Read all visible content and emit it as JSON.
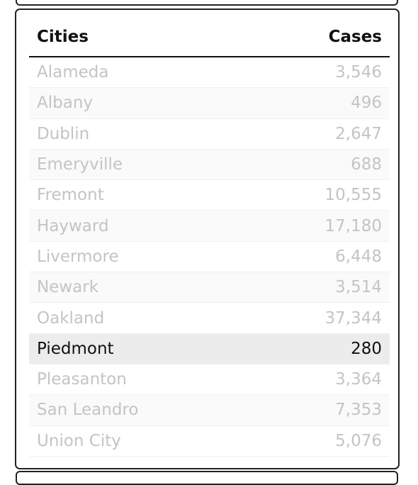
{
  "table": {
    "headers": {
      "city": "Cities",
      "cases": "Cases"
    },
    "rows": [
      {
        "city": "Alameda",
        "cases": "3,546"
      },
      {
        "city": "Albany",
        "cases": "496"
      },
      {
        "city": "Dublin",
        "cases": "2,647"
      },
      {
        "city": "Emeryville",
        "cases": "688"
      },
      {
        "city": "Fremont",
        "cases": "10,555"
      },
      {
        "city": "Hayward",
        "cases": "17,180"
      },
      {
        "city": "Livermore",
        "cases": "6,448"
      },
      {
        "city": "Newark",
        "cases": "3,514"
      },
      {
        "city": "Oakland",
        "cases": "37,344"
      },
      {
        "city": "Piedmont",
        "cases": "280"
      },
      {
        "city": "Pleasanton",
        "cases": "3,364"
      },
      {
        "city": "San Leandro",
        "cases": "7,353"
      },
      {
        "city": "Union City",
        "cases": "5,076"
      }
    ],
    "highlighted_city": "Piedmont"
  }
}
